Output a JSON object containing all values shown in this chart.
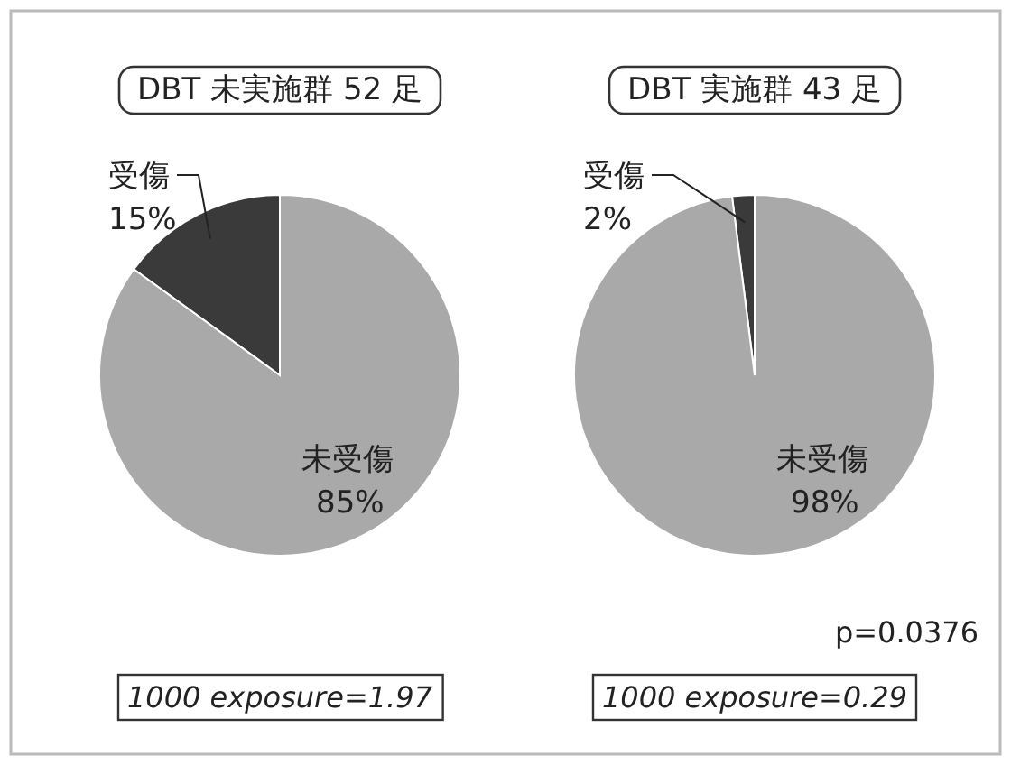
{
  "chart_data": [
    {
      "type": "pie",
      "title": "DBT 未実施群 52 足",
      "categories": [
        "受傷",
        "未受傷"
      ],
      "values": [
        15,
        85
      ],
      "colors": [
        "#3a3a3a",
        "#a9a9a9"
      ],
      "value_labels": [
        "15%",
        "85%"
      ],
      "annotations": [
        "1000 exposure=1.97"
      ]
    },
    {
      "type": "pie",
      "title": "DBT 実施群 43 足",
      "categories": [
        "受傷",
        "未受傷"
      ],
      "values": [
        2,
        98
      ],
      "colors": [
        "#3a3a3a",
        "#a9a9a9"
      ],
      "value_labels": [
        "2%",
        "98%"
      ],
      "annotations": [
        "p=0.0376",
        "1000 exposure=0.29"
      ]
    }
  ]
}
